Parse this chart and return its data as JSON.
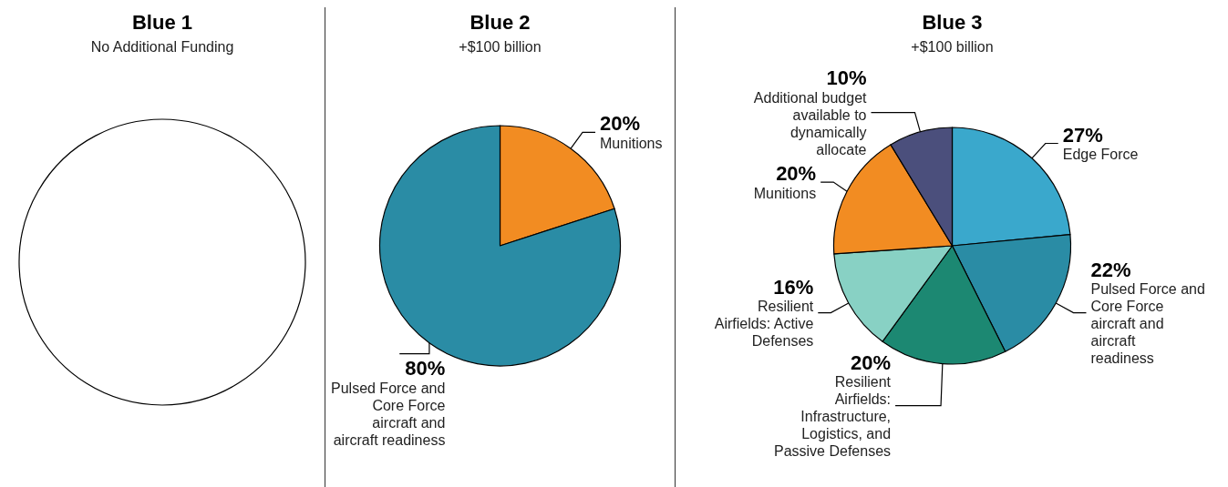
{
  "chart_data": [
    {
      "type": "pie",
      "title": "Blue 1",
      "subtitle": "No Additional Funding",
      "categories": [
        null
      ],
      "values": [
        100
      ],
      "colors": [
        "#ffffff"
      ]
    },
    {
      "type": "pie",
      "title": "Blue 2",
      "subtitle": "+$100 billion",
      "categories": [
        "Munitions",
        "Pulsed Force and Core Force aircraft and aircraft readiness"
      ],
      "values": [
        20,
        80
      ],
      "colors": [
        "#f28c22",
        "#2a8ca5"
      ],
      "value_labels": [
        "20%",
        "80%"
      ]
    },
    {
      "type": "pie",
      "title": "Blue 3",
      "subtitle": "+$100 billion",
      "categories": [
        "Edge Force",
        "Pulsed Force and Core Force aircraft and aircraft readiness",
        "Resilient Airfields: Infrastructure, Logistics, and Passive Defenses",
        "Resilient Airfields: Active Defenses",
        "Munitions",
        "Additional budget available to dynamically allocate"
      ],
      "values": [
        27,
        22,
        20,
        16,
        20,
        10
      ],
      "colors": [
        "#3aa8cc",
        "#2a8ca5",
        "#1c8872",
        "#88d1c4",
        "#f28c22",
        "#4b4f7c"
      ],
      "value_labels": [
        "27%",
        "22%",
        "20%",
        "16%",
        "20%",
        "10%"
      ]
    }
  ]
}
